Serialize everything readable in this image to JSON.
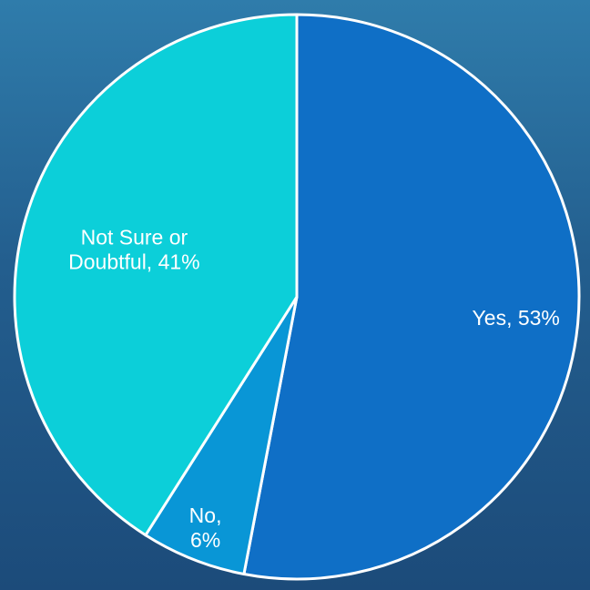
{
  "chart_data": {
    "type": "pie",
    "title": "",
    "slices": [
      {
        "label": "Yes",
        "value": 53,
        "color": "#0f6fc6",
        "data_label_lines": [
          "Yes, 53%"
        ]
      },
      {
        "label": "No",
        "value": 6,
        "color": "#0996d6",
        "data_label_lines": [
          "No,",
          "6%"
        ]
      },
      {
        "label": "Not Sure or Doubtful",
        "value": 41,
        "color": "#0ccfd9",
        "data_label_lines": [
          "Not Sure or",
          "Doubtful, 41%"
        ]
      }
    ],
    "start_angle": "12 o'clock",
    "direction": "clockwise",
    "slice_border_color": "#ffffff",
    "legend": "none",
    "data_labels": "inside slices, category name and percentage"
  },
  "colors": {
    "background_top": "#2f7cab",
    "background_bottom": "#1c4b7a",
    "label_text": "#ffffff"
  }
}
